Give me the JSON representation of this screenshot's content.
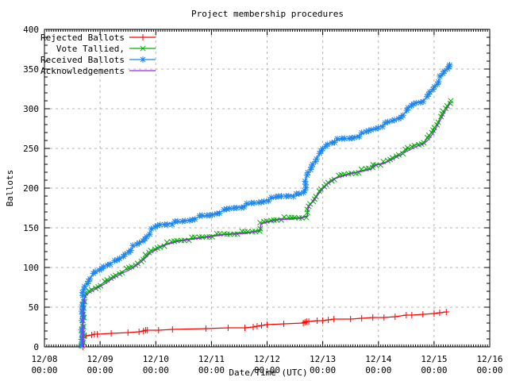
{
  "chart_data": {
    "type": "line",
    "title": "Project membership procedures",
    "xlabel": "Date/Time (UTC)",
    "ylabel": "Ballots",
    "ylim": [
      0,
      400
    ],
    "y_tick_step": 50,
    "y_minor_step": 10,
    "y_ticks": [
      "0",
      "50",
      "100",
      "150",
      "200",
      "250",
      "300",
      "350",
      "400"
    ],
    "x_axis_days": 8,
    "x_minor_per_day": 24,
    "x_ticks": [
      {
        "date": "12/08",
        "time": "00:00"
      },
      {
        "date": "12/09",
        "time": "00:00"
      },
      {
        "date": "12/10",
        "time": "00:00"
      },
      {
        "date": "12/11",
        "time": "00:00"
      },
      {
        "date": "12/12",
        "time": "00:00"
      },
      {
        "date": "12/13",
        "time": "00:00"
      },
      {
        "date": "12/14",
        "time": "00:00"
      },
      {
        "date": "12/15",
        "time": "00:00"
      },
      {
        "date": "12/16",
        "time": "00:00"
      }
    ],
    "grid": true,
    "grid_color": "#b4b4b4",
    "legend_position": "top-left-inside",
    "series": [
      {
        "name": "Rejected Ballots",
        "color": "#ff0000",
        "marker": "plus",
        "dense_markers": false,
        "points": [
          [
            0.69,
            0
          ],
          [
            0.7,
            13
          ],
          [
            0.75,
            14
          ],
          [
            0.85,
            15
          ],
          [
            0.9,
            16
          ],
          [
            0.95,
            16
          ],
          [
            1.2,
            17
          ],
          [
            1.5,
            18
          ],
          [
            1.7,
            19
          ],
          [
            1.78,
            20
          ],
          [
            1.82,
            21
          ],
          [
            1.85,
            21
          ],
          [
            2.05,
            21
          ],
          [
            2.3,
            22
          ],
          [
            2.9,
            23
          ],
          [
            3.3,
            24
          ],
          [
            3.6,
            24
          ],
          [
            3.75,
            25
          ],
          [
            3.82,
            26
          ],
          [
            3.9,
            27
          ],
          [
            4.0,
            28
          ],
          [
            4.3,
            29
          ],
          [
            4.65,
            30
          ],
          [
            4.68,
            31
          ],
          [
            4.71,
            32
          ],
          [
            4.75,
            32
          ],
          [
            4.9,
            33
          ],
          [
            5.0,
            33
          ],
          [
            5.1,
            34
          ],
          [
            5.2,
            35
          ],
          [
            5.5,
            35
          ],
          [
            5.7,
            36
          ],
          [
            5.9,
            37
          ],
          [
            6.1,
            37
          ],
          [
            6.3,
            38
          ],
          [
            6.5,
            40
          ],
          [
            6.6,
            40
          ],
          [
            6.8,
            41
          ],
          [
            7.0,
            42
          ],
          [
            7.1,
            43
          ],
          [
            7.22,
            44
          ]
        ]
      },
      {
        "name": "Vote Tallied,",
        "color": "#00b000",
        "marker": "cross",
        "dense_markers": true,
        "points": [
          [
            0.69,
            0
          ],
          [
            0.695,
            25
          ],
          [
            0.7,
            50
          ],
          [
            0.71,
            60
          ],
          [
            0.73,
            65
          ],
          [
            0.75,
            67
          ],
          [
            0.8,
            70
          ],
          [
            0.85,
            72
          ],
          [
            0.9,
            74
          ],
          [
            0.95,
            76
          ],
          [
            1.0,
            78
          ],
          [
            1.05,
            80
          ],
          [
            1.1,
            82
          ],
          [
            1.15,
            84
          ],
          [
            1.2,
            87
          ],
          [
            1.25,
            89
          ],
          [
            1.3,
            91
          ],
          [
            1.35,
            93
          ],
          [
            1.4,
            95
          ],
          [
            1.45,
            97
          ],
          [
            1.5,
            98
          ],
          [
            1.55,
            100
          ],
          [
            1.6,
            101
          ],
          [
            1.65,
            104
          ],
          [
            1.7,
            107
          ],
          [
            1.75,
            110
          ],
          [
            1.8,
            113
          ],
          [
            1.85,
            116
          ],
          [
            1.9,
            120
          ],
          [
            1.95,
            122
          ],
          [
            2.0,
            124
          ],
          [
            2.05,
            126
          ],
          [
            2.1,
            127
          ],
          [
            2.2,
            130
          ],
          [
            2.3,
            132
          ],
          [
            2.4,
            134
          ],
          [
            2.5,
            135
          ],
          [
            2.6,
            136
          ],
          [
            2.7,
            137
          ],
          [
            2.8,
            138
          ],
          [
            2.9,
            139
          ],
          [
            3.0,
            140
          ],
          [
            3.1,
            141
          ],
          [
            3.2,
            142
          ],
          [
            3.3,
            142
          ],
          [
            3.4,
            143
          ],
          [
            3.5,
            144
          ],
          [
            3.6,
            144
          ],
          [
            3.7,
            145
          ],
          [
            3.8,
            146
          ],
          [
            3.87,
            147
          ],
          [
            3.89,
            156
          ],
          [
            4.0,
            158
          ],
          [
            4.1,
            160
          ],
          [
            4.2,
            161
          ],
          [
            4.3,
            162
          ],
          [
            4.4,
            162
          ],
          [
            4.5,
            163
          ],
          [
            4.6,
            163
          ],
          [
            4.72,
            165
          ],
          [
            4.74,
            177
          ],
          [
            4.8,
            182
          ],
          [
            4.85,
            187
          ],
          [
            4.9,
            192
          ],
          [
            4.95,
            196
          ],
          [
            5.0,
            200
          ],
          [
            5.05,
            204
          ],
          [
            5.1,
            207
          ],
          [
            5.15,
            210
          ],
          [
            5.2,
            212
          ],
          [
            5.3,
            215
          ],
          [
            5.4,
            217
          ],
          [
            5.5,
            219
          ],
          [
            5.6,
            220
          ],
          [
            5.7,
            222
          ],
          [
            5.8,
            224
          ],
          [
            5.88,
            225
          ],
          [
            5.9,
            230
          ],
          [
            6.0,
            230
          ],
          [
            6.1,
            232
          ],
          [
            6.2,
            235
          ],
          [
            6.3,
            240
          ],
          [
            6.4,
            244
          ],
          [
            6.5,
            248
          ],
          [
            6.6,
            252
          ],
          [
            6.7,
            255
          ],
          [
            6.8,
            257
          ],
          [
            6.9,
            264
          ],
          [
            7.0,
            275
          ],
          [
            7.1,
            287
          ],
          [
            7.2,
            300
          ],
          [
            7.3,
            310
          ]
        ]
      },
      {
        "name": "Received Ballots",
        "color": "#1c86ee",
        "marker": "star",
        "dense_markers": true,
        "points": [
          [
            0.67,
            0
          ],
          [
            0.675,
            15
          ],
          [
            0.68,
            35
          ],
          [
            0.685,
            55
          ],
          [
            0.69,
            65
          ],
          [
            0.7,
            71
          ],
          [
            0.72,
            75
          ],
          [
            0.75,
            79
          ],
          [
            0.8,
            85
          ],
          [
            0.85,
            89
          ],
          [
            0.9,
            93
          ],
          [
            0.95,
            95
          ],
          [
            1.0,
            97
          ],
          [
            1.05,
            100
          ],
          [
            1.1,
            103
          ],
          [
            1.15,
            105
          ],
          [
            1.2,
            106
          ],
          [
            1.3,
            108
          ],
          [
            1.35,
            110
          ],
          [
            1.4,
            113
          ],
          [
            1.45,
            117
          ],
          [
            1.5,
            120
          ],
          [
            1.55,
            123
          ],
          [
            1.6,
            126
          ],
          [
            1.65,
            128
          ],
          [
            1.7,
            130
          ],
          [
            1.75,
            133
          ],
          [
            1.8,
            136
          ],
          [
            1.85,
            140
          ],
          [
            1.9,
            145
          ],
          [
            1.95,
            149
          ],
          [
            2.0,
            151
          ],
          [
            2.05,
            153
          ],
          [
            2.1,
            154
          ],
          [
            2.2,
            155
          ],
          [
            2.3,
            156
          ],
          [
            2.4,
            157
          ],
          [
            2.5,
            158
          ],
          [
            2.6,
            160
          ],
          [
            2.7,
            162
          ],
          [
            2.8,
            164
          ],
          [
            2.9,
            165
          ],
          [
            3.0,
            166
          ],
          [
            3.1,
            169
          ],
          [
            3.2,
            171
          ],
          [
            3.3,
            173
          ],
          [
            3.4,
            175
          ],
          [
            3.5,
            176
          ],
          [
            3.6,
            178
          ],
          [
            3.7,
            180
          ],
          [
            3.8,
            181
          ],
          [
            3.9,
            183
          ],
          [
            4.0,
            185
          ],
          [
            4.1,
            187
          ],
          [
            4.2,
            189
          ],
          [
            4.3,
            190
          ],
          [
            4.4,
            191
          ],
          [
            4.5,
            191
          ],
          [
            4.6,
            192
          ],
          [
            4.68,
            195
          ],
          [
            4.69,
            205
          ],
          [
            4.7,
            213
          ],
          [
            4.75,
            220
          ],
          [
            4.8,
            227
          ],
          [
            4.85,
            233
          ],
          [
            4.9,
            239
          ],
          [
            4.95,
            244
          ],
          [
            5.0,
            248
          ],
          [
            5.05,
            253
          ],
          [
            5.1,
            256
          ],
          [
            5.15,
            258
          ],
          [
            5.2,
            259
          ],
          [
            5.3,
            261
          ],
          [
            5.4,
            262
          ],
          [
            5.5,
            263
          ],
          [
            5.6,
            265
          ],
          [
            5.7,
            268
          ],
          [
            5.8,
            271
          ],
          [
            5.9,
            274
          ],
          [
            6.0,
            277
          ],
          [
            6.1,
            280
          ],
          [
            6.2,
            283
          ],
          [
            6.3,
            286
          ],
          [
            6.4,
            290
          ],
          [
            6.45,
            293
          ],
          [
            6.5,
            296
          ],
          [
            6.55,
            301
          ],
          [
            6.6,
            305
          ],
          [
            6.65,
            307
          ],
          [
            6.7,
            308
          ],
          [
            6.75,
            309
          ],
          [
            6.8,
            310
          ],
          [
            6.85,
            313
          ],
          [
            6.9,
            317
          ],
          [
            6.95,
            322
          ],
          [
            7.0,
            327
          ],
          [
            7.05,
            332
          ],
          [
            7.1,
            338
          ],
          [
            7.15,
            343
          ],
          [
            7.2,
            348
          ],
          [
            7.25,
            352
          ],
          [
            7.28,
            355
          ]
        ]
      },
      {
        "name": "Acknowledgements",
        "color": "#a020f0",
        "marker": "none",
        "dense_markers": false,
        "points": [
          [
            0.69,
            0
          ],
          [
            0.7,
            48
          ],
          [
            0.72,
            60
          ],
          [
            0.75,
            65
          ],
          [
            0.8,
            68
          ],
          [
            0.9,
            72
          ],
          [
            1.0,
            76
          ],
          [
            1.1,
            80
          ],
          [
            1.2,
            85
          ],
          [
            1.3,
            89
          ],
          [
            1.4,
            93
          ],
          [
            1.5,
            96
          ],
          [
            1.6,
            100
          ],
          [
            1.7,
            105
          ],
          [
            1.8,
            111
          ],
          [
            1.9,
            118
          ],
          [
            2.0,
            122
          ],
          [
            2.1,
            126
          ],
          [
            2.2,
            129
          ],
          [
            2.4,
            133
          ],
          [
            2.6,
            135
          ],
          [
            2.8,
            137
          ],
          [
            3.0,
            139
          ],
          [
            3.2,
            141
          ],
          [
            3.4,
            142
          ],
          [
            3.6,
            143
          ],
          [
            3.8,
            145
          ],
          [
            3.87,
            146
          ],
          [
            3.89,
            155
          ],
          [
            4.0,
            157
          ],
          [
            4.2,
            160
          ],
          [
            4.4,
            161
          ],
          [
            4.6,
            162
          ],
          [
            4.72,
            164
          ],
          [
            4.74,
            176
          ],
          [
            4.85,
            186
          ],
          [
            5.0,
            199
          ],
          [
            5.1,
            206
          ],
          [
            5.2,
            211
          ],
          [
            5.3,
            214
          ],
          [
            5.5,
            218
          ],
          [
            5.7,
            221
          ],
          [
            5.88,
            224
          ],
          [
            5.9,
            228
          ],
          [
            6.1,
            231
          ],
          [
            6.3,
            238
          ],
          [
            6.5,
            246
          ],
          [
            6.7,
            253
          ],
          [
            6.8,
            255
          ],
          [
            6.9,
            261
          ],
          [
            7.0,
            271
          ],
          [
            7.1,
            284
          ],
          [
            7.2,
            297
          ],
          [
            7.29,
            307
          ]
        ]
      }
    ]
  }
}
